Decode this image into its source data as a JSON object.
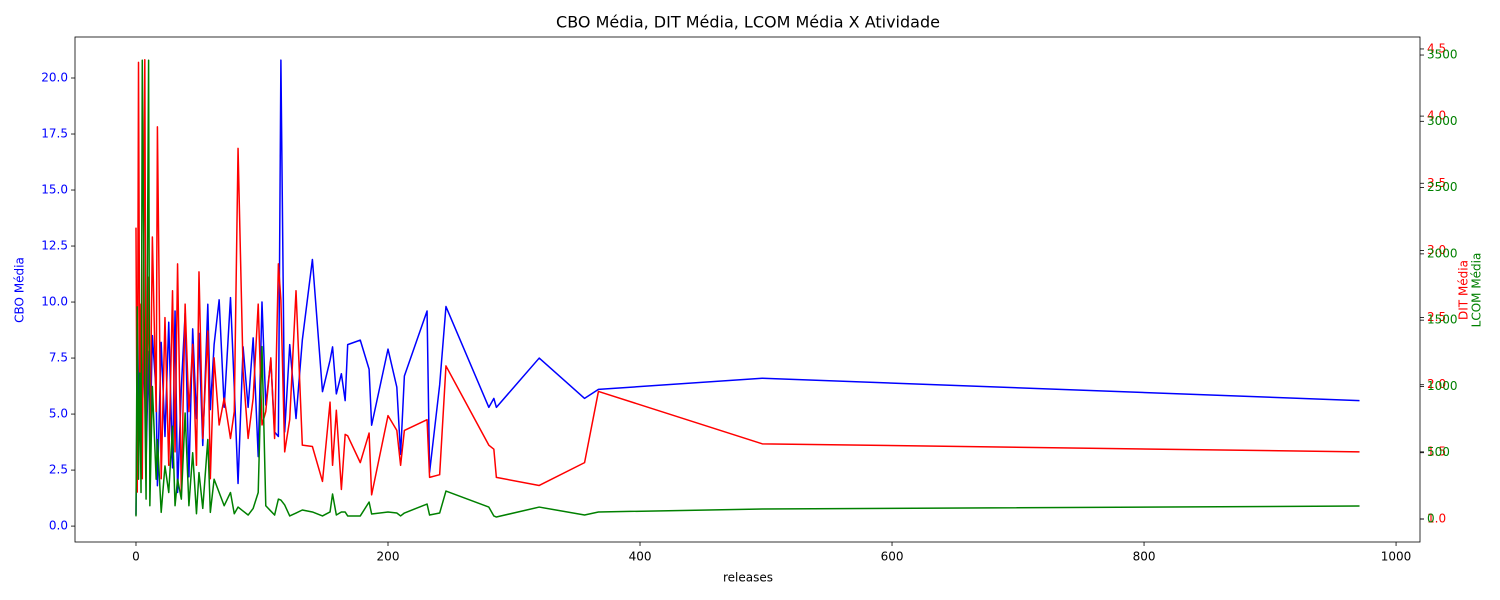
{
  "chart_data": {
    "type": "line",
    "title": "CBO Média, DIT Média, LCOM Média X Atividade",
    "xlabel": "releases",
    "ylabel": "CBO Média",
    "y2label": "DIT Média",
    "y3label": "LCOM Média",
    "x": [
      0,
      1,
      2,
      3,
      4,
      5,
      7,
      8,
      10,
      11,
      13,
      16,
      17,
      20,
      23,
      26,
      29,
      31,
      33,
      36,
      39,
      42,
      45,
      48,
      50,
      53,
      57,
      59,
      62,
      66,
      70,
      75,
      78,
      81,
      85,
      89,
      93,
      97,
      100,
      103,
      107,
      110,
      113,
      115,
      118,
      122,
      127,
      132,
      140,
      148,
      154,
      156,
      159,
      163,
      166,
      168,
      178,
      185,
      187,
      200,
      207,
      210,
      213,
      231,
      233,
      241,
      246,
      280,
      284,
      286,
      320,
      356,
      367,
      497,
      971
    ],
    "xlim": [
      -48.4,
      1019
    ],
    "xticks": [
      0,
      200,
      400,
      600,
      800,
      1000
    ],
    "ylim": [
      -0.71,
      21.83
    ],
    "yticks": [
      {
        "value": 0,
        "label": "0.0"
      },
      {
        "value": 2.5,
        "label": "2.5"
      },
      {
        "value": 5,
        "label": "5.0"
      },
      {
        "value": 7.5,
        "label": "7.5"
      },
      {
        "value": 10,
        "label": "10.0"
      },
      {
        "value": 12.5,
        "label": "12.5"
      },
      {
        "value": 15,
        "label": "15.0"
      },
      {
        "value": 17.5,
        "label": "17.5"
      },
      {
        "value": 20,
        "label": "20.0"
      }
    ],
    "y2lim": [
      0.829,
      4.589
    ],
    "y2ticks": [
      {
        "value": 1,
        "label": "1.0"
      },
      {
        "value": 1.5,
        "label": "1.5"
      },
      {
        "value": 2,
        "label": "2.0"
      },
      {
        "value": 2.5,
        "label": "2.5"
      },
      {
        "value": 3,
        "label": "3.0"
      },
      {
        "value": 3.5,
        "label": "3.5"
      },
      {
        "value": 4,
        "label": "4.0"
      },
      {
        "value": 4.5,
        "label": "4.5"
      }
    ],
    "y3lim": [
      -173.5,
      3636
    ],
    "y3ticks": [
      0,
      500,
      1000,
      1500,
      2000,
      2500,
      3000,
      3500
    ],
    "series": [
      {
        "name": "CBO Média",
        "color": "blue",
        "axis": "y",
        "values": [
          0.5,
          6.5,
          3.0,
          9.3,
          7.4,
          5.0,
          8.6,
          2.8,
          7.8,
          3.4,
          8.5,
          6.0,
          1.8,
          8.2,
          4.0,
          9.1,
          2.6,
          9.6,
          1.5,
          6.2,
          9.5,
          2.2,
          8.8,
          4.8,
          8.6,
          3.6,
          9.9,
          5.2,
          8.1,
          10.1,
          5.3,
          10.2,
          6.2,
          1.9,
          8.0,
          5.3,
          8.4,
          3.1,
          10.0,
          5.4,
          7.4,
          4.2,
          4.0,
          20.8,
          4.2,
          8.1,
          4.8,
          8.3,
          11.9,
          6.0,
          7.4,
          8.0,
          5.9,
          6.8,
          5.6,
          8.1,
          8.3,
          7.0,
          4.5,
          7.9,
          6.2,
          3.2,
          6.7,
          9.6,
          2.4,
          6.3,
          9.8,
          5.3,
          5.7,
          5.3,
          7.5,
          5.7,
          6.1,
          6.6,
          5.6
        ]
      },
      {
        "name": "DIT Média",
        "color": "red",
        "axis": "y2",
        "values": [
          3.17,
          1.2,
          4.4,
          1.9,
          2.6,
          1.3,
          4.42,
          1.6,
          2.8,
          1.5,
          3.1,
          1.8,
          3.92,
          1.3,
          2.5,
          1.4,
          2.7,
          1.5,
          2.9,
          1.2,
          2.6,
          1.8,
          2.3,
          1.4,
          2.84,
          1.6,
          2.4,
          1.3,
          2.2,
          1.7,
          1.9,
          1.6,
          1.8,
          3.76,
          2.1,
          1.6,
          1.9,
          2.6,
          1.7,
          1.8,
          2.2,
          1.6,
          2.9,
          2.63,
          1.5,
          1.74,
          2.7,
          1.55,
          1.54,
          1.28,
          1.87,
          1.4,
          1.81,
          1.22,
          1.63,
          1.62,
          1.42,
          1.64,
          1.18,
          1.77,
          1.66,
          1.4,
          1.66,
          1.74,
          1.31,
          1.33,
          2.14,
          1.55,
          1.52,
          1.31,
          1.25,
          1.42,
          1.95,
          1.56,
          1.5
        ]
      },
      {
        "name": "LCOM Média",
        "color": "green",
        "axis": "y3",
        "values": [
          20,
          1600,
          300,
          1100,
          200,
          3461,
          900,
          150,
          3461,
          100,
          1000,
          300,
          600,
          50,
          400,
          200,
          700,
          100,
          300,
          150,
          800,
          100,
          500,
          40,
          350,
          80,
          600,
          50,
          300,
          200,
          100,
          200,
          40,
          90,
          60,
          30,
          80,
          200,
          1300,
          100,
          60,
          30,
          150,
          143,
          106,
          23,
          45,
          68,
          53,
          23,
          53,
          189,
          30,
          53,
          53,
          23,
          23,
          128,
          38,
          53,
          45,
          23,
          45,
          113,
          30,
          45,
          211,
          90,
          23,
          15,
          90,
          30,
          53,
          75,
          98
        ]
      }
    ]
  }
}
